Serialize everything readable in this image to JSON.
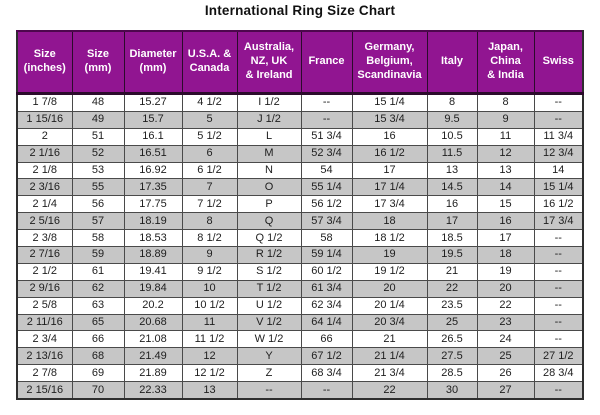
{
  "title": "International Ring Size Chart",
  "colors": {
    "header_bg": "#911591",
    "header_text": "#ffffff",
    "row_bg": "#ffffff",
    "row_alt_bg": "#c6c6c6",
    "grid_border": "#4a4a4a",
    "body_text": "#1e1e1e"
  },
  "chart_data": {
    "type": "table",
    "title": "International Ring Size Chart",
    "layout_hints": {
      "header_rows": 1,
      "alternating_row_shading": true,
      "all_cells_centered": true
    },
    "columns": [
      "Size\n(inches)",
      "Size\n(mm)",
      "Diameter\n(mm)",
      "U.S.A. &\nCanada",
      "Australia,\nNZ, UK\n& Ireland",
      "France",
      "Germany,\nBelgium,\nScandinavia",
      "Italy",
      "Japan,\nChina\n& India",
      "Swiss"
    ],
    "rows": [
      [
        "1 7/8",
        "48",
        "15.27",
        "4 1/2",
        "I 1/2",
        "--",
        "15 1/4",
        "8",
        "8",
        "--"
      ],
      [
        "1 15/16",
        "49",
        "15.7",
        "5",
        "J 1/2",
        "--",
        "15 3/4",
        "9.5",
        "9",
        "--"
      ],
      [
        "2",
        "51",
        "16.1",
        "5 1/2",
        "L",
        "51 3/4",
        "16",
        "10.5",
        "11",
        "11 3/4"
      ],
      [
        "2 1/16",
        "52",
        "16.51",
        "6",
        "M",
        "52 3/4",
        "16 1/2",
        "11.5",
        "12",
        "12 3/4"
      ],
      [
        "2 1/8",
        "53",
        "16.92",
        "6 1/2",
        "N",
        "54",
        "17",
        "13",
        "13",
        "14"
      ],
      [
        "2 3/16",
        "55",
        "17.35",
        "7",
        "O",
        "55 1/4",
        "17 1/4",
        "14.5",
        "14",
        "15 1/4"
      ],
      [
        "2 1/4",
        "56",
        "17.75",
        "7 1/2",
        "P",
        "56 1/2",
        "17 3/4",
        "16",
        "15",
        "16 1/2"
      ],
      [
        "2 5/16",
        "57",
        "18.19",
        "8",
        "Q",
        "57 3/4",
        "18",
        "17",
        "16",
        "17 3/4"
      ],
      [
        "2 3/8",
        "58",
        "18.53",
        "8 1/2",
        "Q 1/2",
        "58",
        "18 1/2",
        "18.5",
        "17",
        "--"
      ],
      [
        "2 7/16",
        "59",
        "18.89",
        "9",
        "R 1/2",
        "59 1/4",
        "19",
        "19.5",
        "18",
        "--"
      ],
      [
        "2 1/2",
        "61",
        "19.41",
        "9 1/2",
        "S 1/2",
        "60 1/2",
        "19 1/2",
        "21",
        "19",
        "--"
      ],
      [
        "2 9/16",
        "62",
        "19.84",
        "10",
        "T 1/2",
        "61 3/4",
        "20",
        "22",
        "20",
        "--"
      ],
      [
        "2 5/8",
        "63",
        "20.2",
        "10 1/2",
        "U 1/2",
        "62 3/4",
        "20 1/4",
        "23.5",
        "22",
        "--"
      ],
      [
        "2 11/16",
        "65",
        "20.68",
        "11",
        "V 1/2",
        "64 1/4",
        "20 3/4",
        "25",
        "23",
        "--"
      ],
      [
        "2 3/4",
        "66",
        "21.08",
        "11 1/2",
        "W 1/2",
        "66",
        "21",
        "26.5",
        "24",
        "--"
      ],
      [
        "2 13/16",
        "68",
        "21.49",
        "12",
        "Y",
        "67 1/2",
        "21 1/4",
        "27.5",
        "25",
        "27 1/2"
      ],
      [
        "2 7/8",
        "69",
        "21.89",
        "12 1/2",
        "Z",
        "68 3/4",
        "21 3/4",
        "28.5",
        "26",
        "28 3/4"
      ],
      [
        "2 15/16",
        "70",
        "22.33",
        "13",
        "--",
        "--",
        "22",
        "30",
        "27",
        "--"
      ]
    ]
  }
}
